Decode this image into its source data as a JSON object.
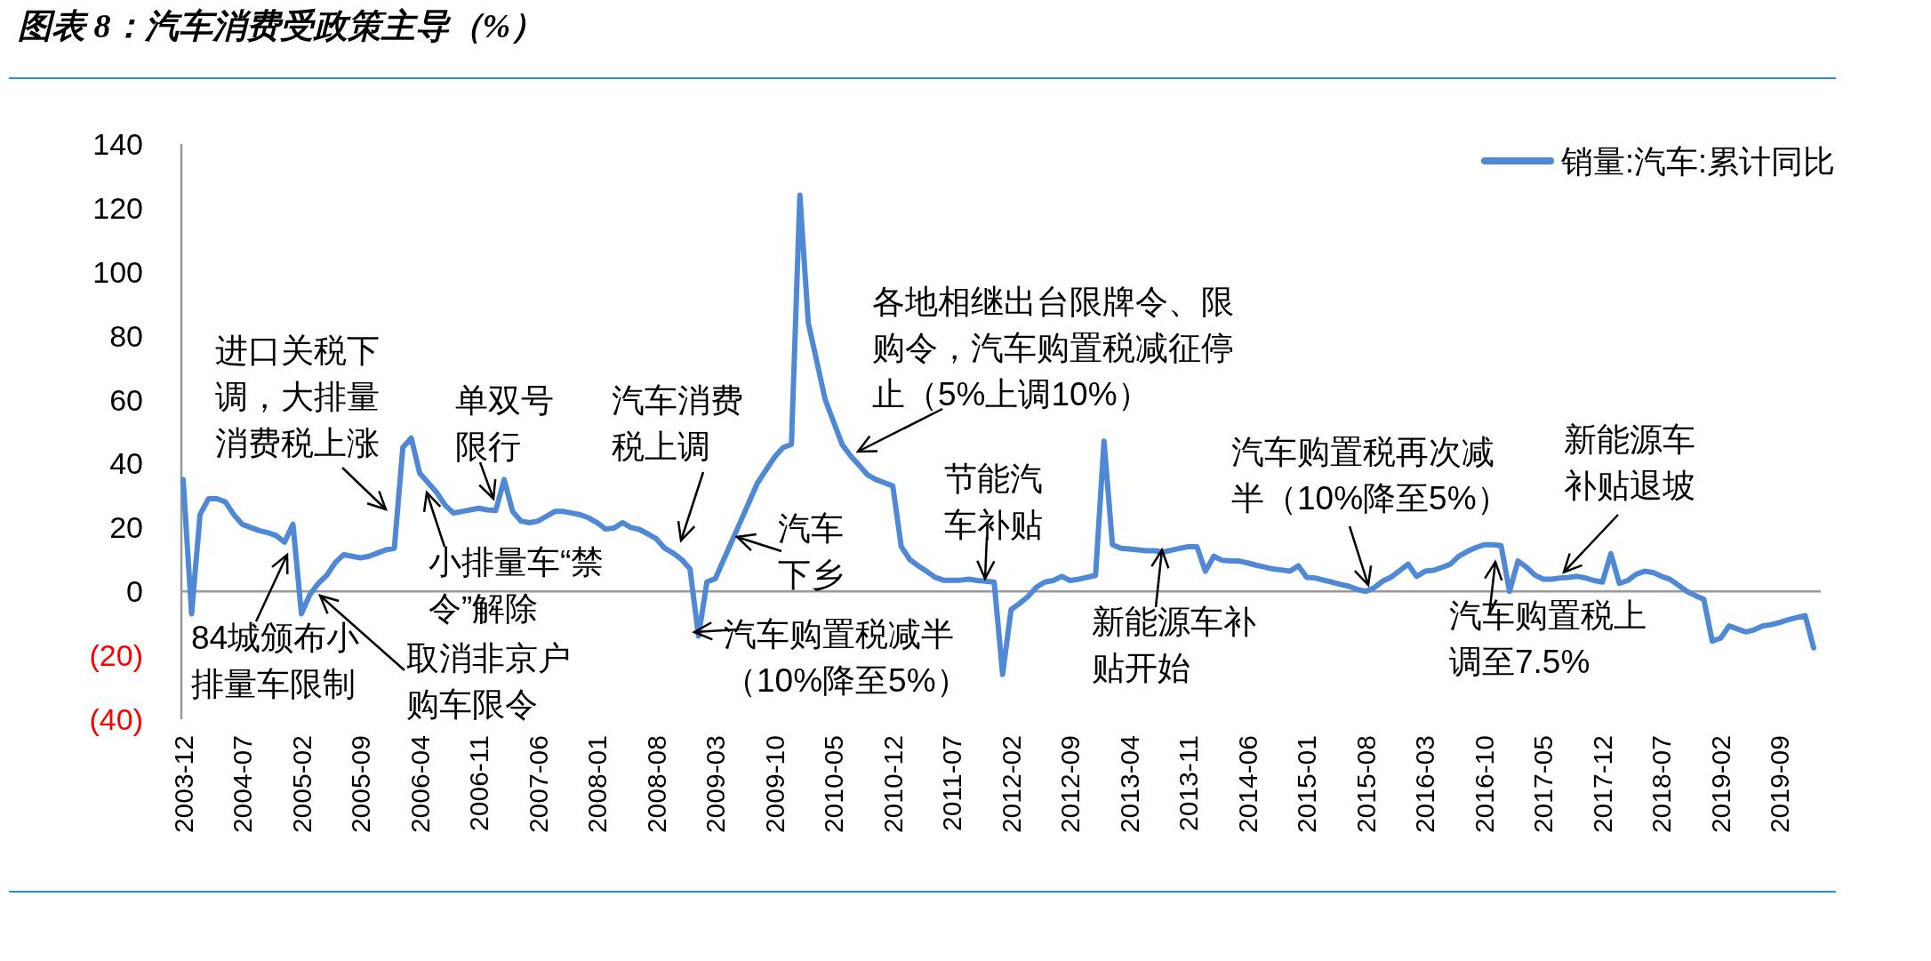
{
  "chart_data": {
    "type": "line",
    "title": "图表 8：汽车消费受政策主导（%）",
    "categories": [
      "2003-12",
      null,
      null,
      null,
      null,
      null,
      null,
      "2004-07",
      null,
      null,
      null,
      null,
      null,
      null,
      "2005-02",
      null,
      null,
      null,
      null,
      null,
      null,
      "2005-09",
      null,
      null,
      null,
      null,
      null,
      null,
      "2006-04",
      null,
      null,
      null,
      null,
      null,
      null,
      "2006-11",
      null,
      null,
      null,
      null,
      null,
      null,
      "2007-06",
      null,
      null,
      null,
      null,
      null,
      null,
      "2008-01",
      null,
      null,
      null,
      null,
      null,
      null,
      "2008-08",
      null,
      null,
      null,
      null,
      null,
      null,
      "2009-03",
      null,
      null,
      null,
      null,
      null,
      null,
      "2009-10",
      null,
      null,
      null,
      null,
      null,
      null,
      "2010-05",
      null,
      null,
      null,
      null,
      null,
      null,
      "2010-12",
      null,
      null,
      null,
      null,
      null,
      null,
      "2011-07",
      null,
      null,
      null,
      null,
      null,
      null,
      "2012-02",
      null,
      null,
      null,
      null,
      null,
      null,
      "2012-09",
      null,
      null,
      null,
      null,
      null,
      null,
      "2013-04",
      null,
      null,
      null,
      null,
      null,
      null,
      "2013-11",
      null,
      null,
      null,
      null,
      null,
      null,
      "2014-06",
      null,
      null,
      null,
      null,
      null,
      null,
      "2015-01",
      null,
      null,
      null,
      null,
      null,
      null,
      "2015-08",
      null,
      null,
      null,
      null,
      null,
      null,
      "2016-03",
      null,
      null,
      null,
      null,
      null,
      null,
      "2016-10",
      null,
      null,
      null,
      null,
      null,
      null,
      "2017-05",
      null,
      null,
      null,
      null,
      null,
      null,
      "2017-12",
      null,
      null,
      null,
      null,
      null,
      null,
      "2018-07",
      null,
      null,
      null,
      null,
      null,
      null,
      "2019-02",
      null,
      null,
      null,
      null,
      null,
      null,
      "2019-09",
      null,
      null,
      null,
      null
    ],
    "series": [
      {
        "name": "销量:汽车:累计同比",
        "color": "#4f88d4",
        "values": [
          35,
          -7,
          24,
          29,
          29,
          28,
          24,
          21,
          20,
          19,
          18.4,
          17.5,
          15.4,
          21,
          -7,
          -1,
          2.5,
          5,
          9,
          11.5,
          11,
          10.5,
          11,
          12,
          13,
          13.5,
          45,
          48,
          37,
          34,
          31,
          27,
          24.5,
          25,
          25.5,
          26,
          25.5,
          25.3,
          35,
          25,
          22,
          21.5,
          22,
          23.5,
          25,
          25,
          24.5,
          24,
          23,
          21.5,
          19.5,
          19.8,
          21.5,
          20,
          19.4,
          18,
          16.5,
          13.5,
          12,
          10,
          7,
          -14,
          3,
          4,
          10,
          16,
          22,
          28,
          34,
          38,
          42,
          45,
          46,
          124,
          84,
          72,
          60,
          53,
          46,
          42.4,
          39.5,
          36.5,
          35,
          34,
          33,
          14,
          10,
          8,
          6.3,
          4.4,
          3.5,
          3.5,
          3.5,
          3.8,
          3.4,
          3.2,
          2.9,
          -26,
          -5.7,
          -3.8,
          -1.6,
          1.3,
          2.9,
          3.4,
          4.7,
          3.4,
          3.8,
          4.4,
          5,
          47,
          14.6,
          13.5,
          13.3,
          13,
          12.7,
          12.7,
          12.3,
          12.9,
          13.5,
          14,
          14,
          6.3,
          11,
          9.7,
          9.5,
          9.5,
          8.9,
          8.2,
          7.6,
          7,
          6.7,
          6.3,
          8,
          4.4,
          4.2,
          3.5,
          2.9,
          2.2,
          1.6,
          0.6,
          0,
          1.2,
          3.2,
          4.5,
          6.5,
          8.5,
          4.7,
          6.3,
          6.6,
          7.5,
          8.5,
          11,
          12.5,
          13.7,
          14.6,
          14.6,
          14.3,
          0,
          9.5,
          7.6,
          5.1,
          3.8,
          3.8,
          4.2,
          4.4,
          4.7,
          4.2,
          3.4,
          2.9,
          11.8,
          2.5,
          3.4,
          5.4,
          6.3,
          5.9,
          4.7,
          3.8,
          1.9,
          0,
          -1.3,
          -2.5,
          -15.6,
          -14.6,
          -10.8,
          -11.8,
          -12.7,
          -12,
          -10.8,
          -10.4,
          -9.7,
          -8.9,
          -8.2,
          -7.6,
          -17.7
        ]
      }
    ],
    "ylim": [
      -40,
      140
    ],
    "yticks": [
      {
        "value": -40,
        "label": "(40)"
      },
      {
        "value": -20,
        "label": "(20)"
      },
      0,
      20,
      40,
      60,
      80,
      100,
      120,
      140
    ],
    "legend": "top right",
    "marker": "none",
    "line_style": "solid",
    "annotations": [
      "进口关税下调，大排量消费税上涨",
      "84城颁布小排量车限制",
      "取消非京户购车限令",
      {
        "text": "单双号限行",
        "y": 29
      },
      "小排量车“禁令”解除",
      "汽车消费税上调",
      "汽车购置税减半（10%降至5%）",
      "汽车下乡",
      "各地相继出台限牌令、限购令，汽车购置税减征停止（5%上调10%）",
      {
        "text": "节能汽车补贴",
        "y": 4
      },
      {
        "text": "新能源车补贴开始",
        "y": 13
      },
      {
        "text": "汽车购置税再次减半（10%降至5%）",
        "y": 2
      },
      "汽车购置税上调至7.5%",
      {
        "text": "新能源车补贴退坡",
        "y": 6
      }
    ]
  }
}
